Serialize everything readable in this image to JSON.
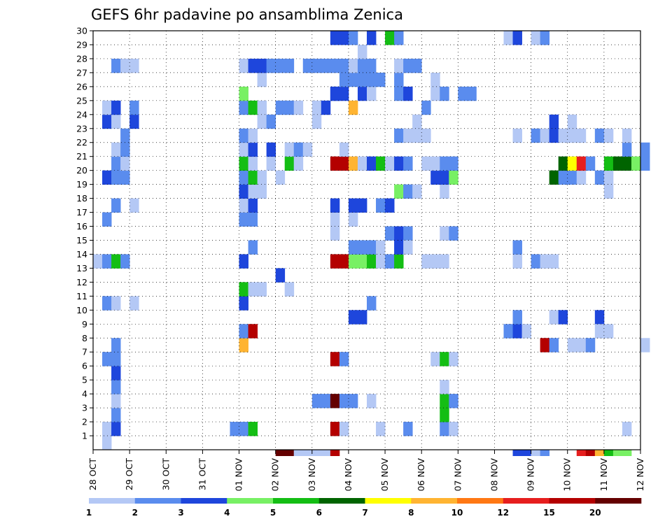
{
  "chart_data": {
    "type": "heatmap",
    "title": "GEFS 6hr padavine po ansamblima Zenica",
    "xlabel": "",
    "ylabel": "",
    "x_tick_labels": [
      "28 OCT",
      "29 OCT",
      "30 OCT",
      "31 OCT",
      "01 NOV",
      "02 NOV",
      "03 NOV",
      "04 NOV",
      "05 NOV",
      "06 NOV",
      "07 NOV",
      "08 NOV",
      "09 NOV",
      "10 NOV",
      "11 NOV",
      "12 NOV"
    ],
    "y_tick_labels": [
      "1",
      "2",
      "3",
      "4",
      "5",
      "6",
      "7",
      "8",
      "9",
      "10",
      "11",
      "12",
      "13",
      "14",
      "15",
      "16",
      "17",
      "18",
      "19",
      "20",
      "21",
      "22",
      "23",
      "24",
      "25",
      "26",
      "27",
      "28",
      "29",
      "30"
    ],
    "x_range_days": [
      0,
      15
    ],
    "y_range_members": [
      0,
      30
    ],
    "time_step_days": 0.25,
    "grid": true,
    "legend_position": "bottom",
    "levels": [
      "1",
      "2",
      "3",
      "4",
      "5",
      "6",
      "7",
      "8",
      "10",
      "12",
      "15",
      "20"
    ],
    "colors": [
      "#b4c8f5",
      "#5a8cee",
      "#1e46dc",
      "#78f064",
      "#14be14",
      "#006400",
      "#ffff00",
      "#ffb432",
      "#ff7814",
      "#e61e1e",
      "#b40000",
      "#640000"
    ],
    "cells": [
      [
        0.25,
        0,
        1
      ],
      [
        0.25,
        1,
        1
      ],
      [
        0.5,
        1,
        3
      ],
      [
        0.5,
        2,
        2
      ],
      [
        0.5,
        3,
        1
      ],
      [
        3.75,
        1,
        2
      ],
      [
        4.0,
        1,
        2
      ],
      [
        4.25,
        1,
        5
      ],
      [
        6.5,
        1,
        11
      ],
      [
        6.75,
        1,
        1
      ],
      [
        7.75,
        1,
        1
      ],
      [
        8.5,
        1,
        2
      ],
      [
        9.5,
        1,
        2
      ],
      [
        9.5,
        2,
        5
      ],
      [
        9.75,
        1,
        1
      ],
      [
        14.5,
        1,
        1
      ],
      [
        0.5,
        4,
        2
      ],
      [
        0.5,
        5,
        3
      ],
      [
        0.5,
        6,
        2
      ],
      [
        6.0,
        3,
        2
      ],
      [
        6.25,
        3,
        2
      ],
      [
        6.5,
        3,
        12
      ],
      [
        6.75,
        3,
        2
      ],
      [
        7.0,
        3,
        2
      ],
      [
        7.5,
        3,
        1
      ],
      [
        9.5,
        3,
        5
      ],
      [
        9.5,
        4,
        1
      ],
      [
        9.75,
        3,
        2
      ],
      [
        0.25,
        6,
        2
      ],
      [
        0.5,
        7,
        2
      ],
      [
        4.0,
        7,
        8
      ],
      [
        6.5,
        6,
        11
      ],
      [
        6.75,
        6,
        2
      ],
      [
        9.25,
        6,
        1
      ],
      [
        9.5,
        6,
        5
      ],
      [
        9.75,
        6,
        1
      ],
      [
        12.25,
        7,
        11
      ],
      [
        12.5,
        7,
        2
      ],
      [
        13.0,
        7,
        1
      ],
      [
        13.25,
        7,
        1
      ],
      [
        13.5,
        7,
        2
      ],
      [
        15.0,
        7,
        1
      ],
      [
        4.0,
        8,
        2
      ],
      [
        4.25,
        8,
        11
      ],
      [
        7.0,
        9,
        3
      ],
      [
        7.25,
        9,
        3
      ],
      [
        11.25,
        8,
        2
      ],
      [
        11.5,
        8,
        3
      ],
      [
        11.75,
        8,
        1
      ],
      [
        12.5,
        9,
        1
      ],
      [
        12.75,
        9,
        3
      ],
      [
        13.75,
        9,
        3
      ],
      [
        13.75,
        8,
        1
      ],
      [
        14.0,
        8,
        1
      ],
      [
        0.25,
        10,
        2
      ],
      [
        0.5,
        10,
        1
      ],
      [
        1.0,
        10,
        1
      ],
      [
        4.0,
        10,
        3
      ],
      [
        4.0,
        11,
        5
      ],
      [
        4.25,
        11,
        1
      ],
      [
        4.5,
        11,
        1
      ],
      [
        5.0,
        12,
        3
      ],
      [
        5.25,
        11,
        1
      ],
      [
        7.5,
        10,
        2
      ],
      [
        11.5,
        9,
        2
      ],
      [
        0.0,
        13,
        1
      ],
      [
        0.25,
        13,
        2
      ],
      [
        0.5,
        13,
        5
      ],
      [
        0.75,
        13,
        2
      ],
      [
        4.0,
        13,
        3
      ],
      [
        6.5,
        13,
        11
      ],
      [
        6.75,
        13,
        11
      ],
      [
        7.0,
        13,
        4
      ],
      [
        7.25,
        13,
        4
      ],
      [
        7.5,
        13,
        5
      ],
      [
        7.75,
        13,
        1
      ],
      [
        8.0,
        13,
        2
      ],
      [
        8.25,
        13,
        5
      ],
      [
        8.25,
        14,
        1
      ],
      [
        9.0,
        13,
        1
      ],
      [
        9.25,
        13,
        1
      ],
      [
        9.5,
        13,
        1
      ],
      [
        11.5,
        13,
        1
      ],
      [
        11.5,
        14,
        2
      ],
      [
        12.0,
        13,
        2
      ],
      [
        12.25,
        13,
        1
      ],
      [
        12.5,
        13,
        1
      ],
      [
        4.25,
        14,
        2
      ],
      [
        7.0,
        14,
        2
      ],
      [
        7.25,
        14,
        2
      ],
      [
        7.5,
        14,
        2
      ],
      [
        7.75,
        14,
        1
      ],
      [
        8.0,
        15,
        2
      ],
      [
        8.25,
        15,
        3
      ],
      [
        8.25,
        14,
        3
      ],
      [
        8.5,
        15,
        2
      ],
      [
        8.5,
        14,
        1
      ],
      [
        9.5,
        15,
        1
      ],
      [
        9.75,
        15,
        2
      ],
      [
        0.25,
        16,
        2
      ],
      [
        0.5,
        17,
        2
      ],
      [
        4.0,
        16,
        2
      ],
      [
        4.25,
        16,
        2
      ],
      [
        4.0,
        17,
        1
      ],
      [
        6.5,
        15,
        1
      ],
      [
        6.5,
        16,
        1
      ],
      [
        7.0,
        16,
        1
      ],
      [
        1.0,
        17,
        1
      ],
      [
        4.25,
        17,
        3
      ],
      [
        6.5,
        17,
        3
      ],
      [
        7.0,
        17,
        3
      ],
      [
        7.25,
        17,
        3
      ],
      [
        7.75,
        17,
        2
      ],
      [
        8.0,
        17,
        3
      ],
      [
        4.0,
        18,
        3
      ],
      [
        4.25,
        18,
        1
      ],
      [
        4.5,
        18,
        1
      ],
      [
        8.25,
        18,
        4
      ],
      [
        8.5,
        18,
        2
      ],
      [
        8.75,
        18,
        1
      ],
      [
        9.5,
        18,
        1
      ],
      [
        0.25,
        19,
        3
      ],
      [
        0.5,
        19,
        2
      ],
      [
        0.75,
        19,
        2
      ],
      [
        4.0,
        19,
        2
      ],
      [
        4.25,
        19,
        5
      ],
      [
        4.5,
        19,
        1
      ],
      [
        5.0,
        19,
        1
      ],
      [
        9.25,
        19,
        3
      ],
      [
        9.5,
        19,
        3
      ],
      [
        9.75,
        19,
        4
      ],
      [
        12.5,
        19,
        6
      ],
      [
        12.75,
        19,
        2
      ],
      [
        13.0,
        19,
        2
      ],
      [
        13.25,
        19,
        1
      ],
      [
        13.75,
        19,
        2
      ],
      [
        14.0,
        19,
        1
      ],
      [
        14.0,
        18,
        1
      ],
      [
        0.5,
        20,
        2
      ],
      [
        0.75,
        20,
        1
      ],
      [
        4.0,
        20,
        5
      ],
      [
        4.25,
        20,
        1
      ],
      [
        4.75,
        20,
        1
      ],
      [
        5.25,
        20,
        5
      ],
      [
        5.5,
        20,
        1
      ],
      [
        6.5,
        20,
        11
      ],
      [
        6.75,
        20,
        11
      ],
      [
        7.0,
        20,
        8
      ],
      [
        7.25,
        20,
        1
      ],
      [
        7.5,
        20,
        3
      ],
      [
        7.75,
        20,
        5
      ],
      [
        8.0,
        20,
        1
      ],
      [
        8.25,
        20,
        3
      ],
      [
        8.5,
        20,
        2
      ],
      [
        9.0,
        20,
        1
      ],
      [
        9.25,
        20,
        1
      ],
      [
        9.5,
        20,
        2
      ],
      [
        9.75,
        20,
        2
      ],
      [
        12.75,
        20,
        6
      ],
      [
        13.0,
        20,
        7
      ],
      [
        13.25,
        20,
        10
      ],
      [
        13.5,
        20,
        2
      ],
      [
        14.0,
        20,
        5
      ],
      [
        14.25,
        20,
        6
      ],
      [
        14.5,
        20,
        6
      ],
      [
        14.75,
        20,
        4
      ],
      [
        15.0,
        20,
        2
      ],
      [
        0.5,
        21,
        1
      ],
      [
        0.75,
        21,
        2
      ],
      [
        0.75,
        22,
        2
      ],
      [
        4.0,
        21,
        1
      ],
      [
        4.25,
        21,
        3
      ],
      [
        4.75,
        21,
        3
      ],
      [
        5.25,
        21,
        1
      ],
      [
        5.5,
        21,
        2
      ],
      [
        5.75,
        21,
        1
      ],
      [
        6.75,
        21,
        1
      ],
      [
        8.25,
        22,
        2
      ],
      [
        8.5,
        22,
        1
      ],
      [
        8.75,
        22,
        1
      ],
      [
        9.0,
        22,
        1
      ],
      [
        12.0,
        22,
        2
      ],
      [
        12.25,
        22,
        1
      ],
      [
        12.5,
        22,
        3
      ],
      [
        12.75,
        22,
        1
      ],
      [
        13.0,
        22,
        1
      ],
      [
        13.25,
        22,
        1
      ],
      [
        13.75,
        22,
        2
      ],
      [
        14.0,
        22,
        1
      ],
      [
        14.5,
        21,
        2
      ],
      [
        14.5,
        22,
        1
      ],
      [
        15.0,
        21,
        2
      ],
      [
        0.25,
        23,
        3
      ],
      [
        0.5,
        23,
        1
      ],
      [
        1.0,
        23,
        3
      ],
      [
        4.0,
        22,
        2
      ],
      [
        4.25,
        22,
        1
      ],
      [
        4.5,
        23,
        1
      ],
      [
        4.75,
        23,
        2
      ],
      [
        6.0,
        23,
        1
      ],
      [
        8.75,
        23,
        1
      ],
      [
        11.5,
        22,
        1
      ],
      [
        12.5,
        23,
        3
      ],
      [
        13.0,
        23,
        1
      ],
      [
        0.25,
        24,
        1
      ],
      [
        0.5,
        24,
        3
      ],
      [
        1.0,
        24,
        2
      ],
      [
        4.0,
        24,
        2
      ],
      [
        4.25,
        24,
        5
      ],
      [
        4.5,
        24,
        1
      ],
      [
        5.0,
        24,
        2
      ],
      [
        5.25,
        24,
        2
      ],
      [
        5.5,
        24,
        1
      ],
      [
        6.0,
        24,
        1
      ],
      [
        6.25,
        24,
        3
      ],
      [
        6.5,
        25,
        2
      ],
      [
        7.0,
        24,
        8
      ],
      [
        9.0,
        24,
        2
      ],
      [
        4.0,
        25,
        4
      ],
      [
        6.5,
        25,
        3
      ],
      [
        6.75,
        25,
        3
      ],
      [
        7.25,
        25,
        3
      ],
      [
        7.5,
        25,
        1
      ],
      [
        8.25,
        25,
        2
      ],
      [
        8.5,
        25,
        3
      ],
      [
        9.25,
        25,
        1
      ],
      [
        9.5,
        25,
        2
      ],
      [
        10.0,
        25,
        2
      ],
      [
        10.25,
        25,
        2
      ],
      [
        4.5,
        26,
        1
      ],
      [
        6.75,
        26,
        2
      ],
      [
        7.0,
        26,
        2
      ],
      [
        7.25,
        26,
        2
      ],
      [
        7.5,
        26,
        2
      ],
      [
        7.75,
        26,
        2
      ],
      [
        8.25,
        26,
        2
      ],
      [
        9.25,
        26,
        1
      ],
      [
        0.5,
        27,
        2
      ],
      [
        0.75,
        27,
        1
      ],
      [
        1.0,
        27,
        1
      ],
      [
        4.0,
        27,
        1
      ],
      [
        4.25,
        27,
        3
      ],
      [
        4.5,
        27,
        3
      ],
      [
        4.75,
        27,
        2
      ],
      [
        5.0,
        27,
        2
      ],
      [
        5.25,
        27,
        2
      ],
      [
        5.75,
        27,
        2
      ],
      [
        6.0,
        27,
        2
      ],
      [
        6.25,
        27,
        2
      ],
      [
        6.5,
        27,
        2
      ],
      [
        6.75,
        27,
        2
      ],
      [
        7.0,
        27,
        1
      ],
      [
        7.25,
        27,
        2
      ],
      [
        7.5,
        27,
        2
      ],
      [
        8.25,
        27,
        1
      ],
      [
        8.5,
        27,
        2
      ],
      [
        8.75,
        27,
        2
      ],
      [
        6.5,
        29,
        3
      ],
      [
        6.75,
        29,
        3
      ],
      [
        7.0,
        29,
        2
      ],
      [
        7.25,
        28,
        1
      ],
      [
        7.5,
        29,
        3
      ],
      [
        8.0,
        29,
        5
      ],
      [
        8.25,
        29,
        2
      ],
      [
        11.25,
        29,
        1
      ],
      [
        11.5,
        29,
        3
      ],
      [
        12.0,
        29,
        1
      ],
      [
        12.25,
        29,
        2
      ]
    ],
    "bottom_strip_cells": [
      [
        5.0,
        12
      ],
      [
        5.25,
        12
      ],
      [
        5.5,
        1
      ],
      [
        5.75,
        1
      ],
      [
        6.0,
        1
      ],
      [
        6.25,
        1
      ],
      [
        6.5,
        11
      ],
      [
        11.5,
        3
      ],
      [
        11.75,
        3
      ],
      [
        12.0,
        1
      ],
      [
        12.25,
        2
      ],
      [
        13.25,
        10
      ],
      [
        13.5,
        11
      ],
      [
        13.75,
        8
      ],
      [
        14.0,
        5
      ],
      [
        14.25,
        4
      ],
      [
        14.5,
        4
      ]
    ]
  }
}
